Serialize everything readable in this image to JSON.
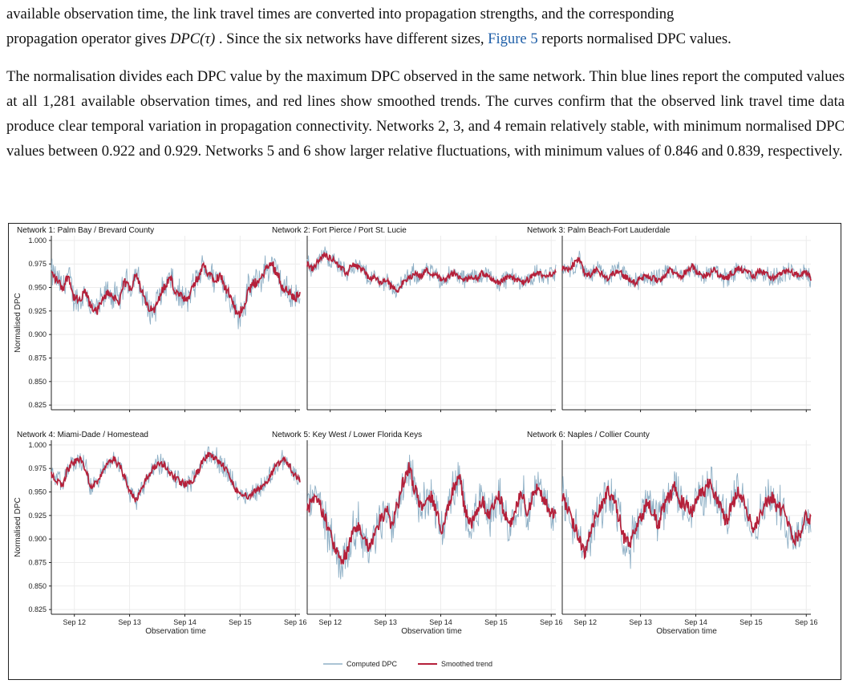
{
  "text": {
    "p1_l1": "available observation time, the link travel times are converted into propagation strengths, and the corresponding",
    "p1_l2_a": "propagation operator gives ",
    "p1_math": "DPC(τ)",
    "p1_l2_b": " . Since the six networks have different sizes, ",
    "p1_ref": "Figure 5",
    "p1_l2_c": " reports normalised DPC values.",
    "p2": "The normalisation divides each DPC value by the maximum DPC observed in the same network. Thin blue lines report the computed values at all 1,281 available observation times, and red lines show smoothed trends. The curves confirm that the observed link travel time data produce clear temporal variation in propagation connectivity. Networks 2, 3, and 4 remain relatively stable, with minimum normalised DPC values between 0.922 and 0.929. Networks 5 and 6 show larger relative fluctuations, with minimum values of 0.846 and 0.839, respectively."
  },
  "colors": {
    "computed": "#8fb0c6",
    "smoothed": "#b5203a",
    "link": "#1f5fa8"
  },
  "chart_data": {
    "type": "line",
    "ylabel": "Normalised DPC",
    "xlabel": "Observation time",
    "ylim": [
      0.82,
      1.005
    ],
    "yticks": [
      "0.825",
      "0.850",
      "0.875",
      "0.900",
      "0.925",
      "0.950",
      "0.975",
      "1.000"
    ],
    "x_start": "Sep 11 14:00",
    "x_end": "Sep 16 02:00",
    "xticks": [
      "Sep 12",
      "Sep 13",
      "Sep 14",
      "Sep 15",
      "Sep 16"
    ],
    "n_observations": 1281,
    "grid": true,
    "legend": {
      "position": "bottom-center",
      "entries": [
        "Computed DPC",
        "Smoothed trend"
      ]
    },
    "panels": [
      {
        "title": "Network 1: Palm Bay / Brevard County",
        "trend": [
          0.965,
          0.958,
          0.95,
          0.962,
          0.94,
          0.935,
          0.945,
          0.93,
          0.925,
          0.935,
          0.945,
          0.94,
          0.935,
          0.955,
          0.95,
          0.965,
          0.945,
          0.93,
          0.925,
          0.94,
          0.95,
          0.96,
          0.945,
          0.94,
          0.935,
          0.95,
          0.96,
          0.972,
          0.965,
          0.96,
          0.962,
          0.948,
          0.935,
          0.92,
          0.93,
          0.948,
          0.955,
          0.958,
          0.97,
          0.975,
          0.965,
          0.95,
          0.945,
          0.938,
          0.945
        ],
        "computed_min": 0.89,
        "computed_max": 1.0
      },
      {
        "title": "Network 2: Fort Pierce / Port St. Lucie",
        "trend": [
          0.975,
          0.97,
          0.978,
          0.985,
          0.982,
          0.978,
          0.97,
          0.965,
          0.975,
          0.972,
          0.968,
          0.96,
          0.96,
          0.955,
          0.958,
          0.95,
          0.948,
          0.955,
          0.96,
          0.965,
          0.962,
          0.968,
          0.965,
          0.962,
          0.958,
          0.962,
          0.965,
          0.96,
          0.958,
          0.962,
          0.96,
          0.965,
          0.962,
          0.958,
          0.955,
          0.96,
          0.962,
          0.958,
          0.955,
          0.958,
          0.962,
          0.965,
          0.962,
          0.965,
          0.965
        ],
        "computed_min": 0.929,
        "computed_max": 1.0
      },
      {
        "title": "Network 3: Palm Beach-Fort Lauderdale",
        "trend": [
          0.97,
          0.968,
          0.975,
          0.98,
          0.965,
          0.962,
          0.968,
          0.965,
          0.96,
          0.965,
          0.968,
          0.962,
          0.958,
          0.955,
          0.96,
          0.962,
          0.96,
          0.958,
          0.962,
          0.968,
          0.965,
          0.962,
          0.968,
          0.972,
          0.965,
          0.962,
          0.965,
          0.968,
          0.962,
          0.96,
          0.965,
          0.97,
          0.968,
          0.965,
          0.962,
          0.968,
          0.965,
          0.96,
          0.962,
          0.965,
          0.968,
          0.965,
          0.962,
          0.966,
          0.96
        ],
        "computed_min": 0.929,
        "computed_max": 1.0
      },
      {
        "title": "Network 4: Miami-Dade / Homestead",
        "trend": [
          0.968,
          0.962,
          0.958,
          0.975,
          0.982,
          0.985,
          0.975,
          0.955,
          0.96,
          0.97,
          0.98,
          0.985,
          0.978,
          0.965,
          0.95,
          0.942,
          0.955,
          0.965,
          0.975,
          0.98,
          0.978,
          0.97,
          0.965,
          0.96,
          0.958,
          0.962,
          0.972,
          0.985,
          0.99,
          0.985,
          0.98,
          0.975,
          0.96,
          0.95,
          0.948,
          0.945,
          0.95,
          0.955,
          0.96,
          0.97,
          0.98,
          0.985,
          0.978,
          0.968,
          0.962
        ],
        "computed_min": 0.922,
        "computed_max": 1.0
      },
      {
        "title": "Network 5: Key West / Lower Florida Keys",
        "trend": [
          0.93,
          0.945,
          0.94,
          0.925,
          0.905,
          0.89,
          0.875,
          0.885,
          0.905,
          0.915,
          0.9,
          0.89,
          0.905,
          0.92,
          0.93,
          0.915,
          0.935,
          0.96,
          0.975,
          0.955,
          0.935,
          0.94,
          0.945,
          0.925,
          0.91,
          0.935,
          0.955,
          0.965,
          0.93,
          0.915,
          0.93,
          0.94,
          0.925,
          0.935,
          0.945,
          0.925,
          0.915,
          0.935,
          0.95,
          0.93,
          0.945,
          0.955,
          0.94,
          0.93,
          0.925
        ],
        "computed_min": 0.846,
        "computed_max": 1.0
      },
      {
        "title": "Network 6: Naples / Collier County",
        "trend": [
          0.945,
          0.93,
          0.915,
          0.9,
          0.885,
          0.905,
          0.925,
          0.935,
          0.95,
          0.945,
          0.925,
          0.9,
          0.895,
          0.91,
          0.925,
          0.94,
          0.93,
          0.915,
          0.935,
          0.945,
          0.955,
          0.94,
          0.935,
          0.93,
          0.945,
          0.95,
          0.96,
          0.945,
          0.935,
          0.92,
          0.935,
          0.95,
          0.94,
          0.925,
          0.91,
          0.925,
          0.94,
          0.945,
          0.935,
          0.93,
          0.915,
          0.9,
          0.905,
          0.925,
          0.92
        ],
        "computed_min": 0.839,
        "computed_max": 1.0
      }
    ]
  }
}
